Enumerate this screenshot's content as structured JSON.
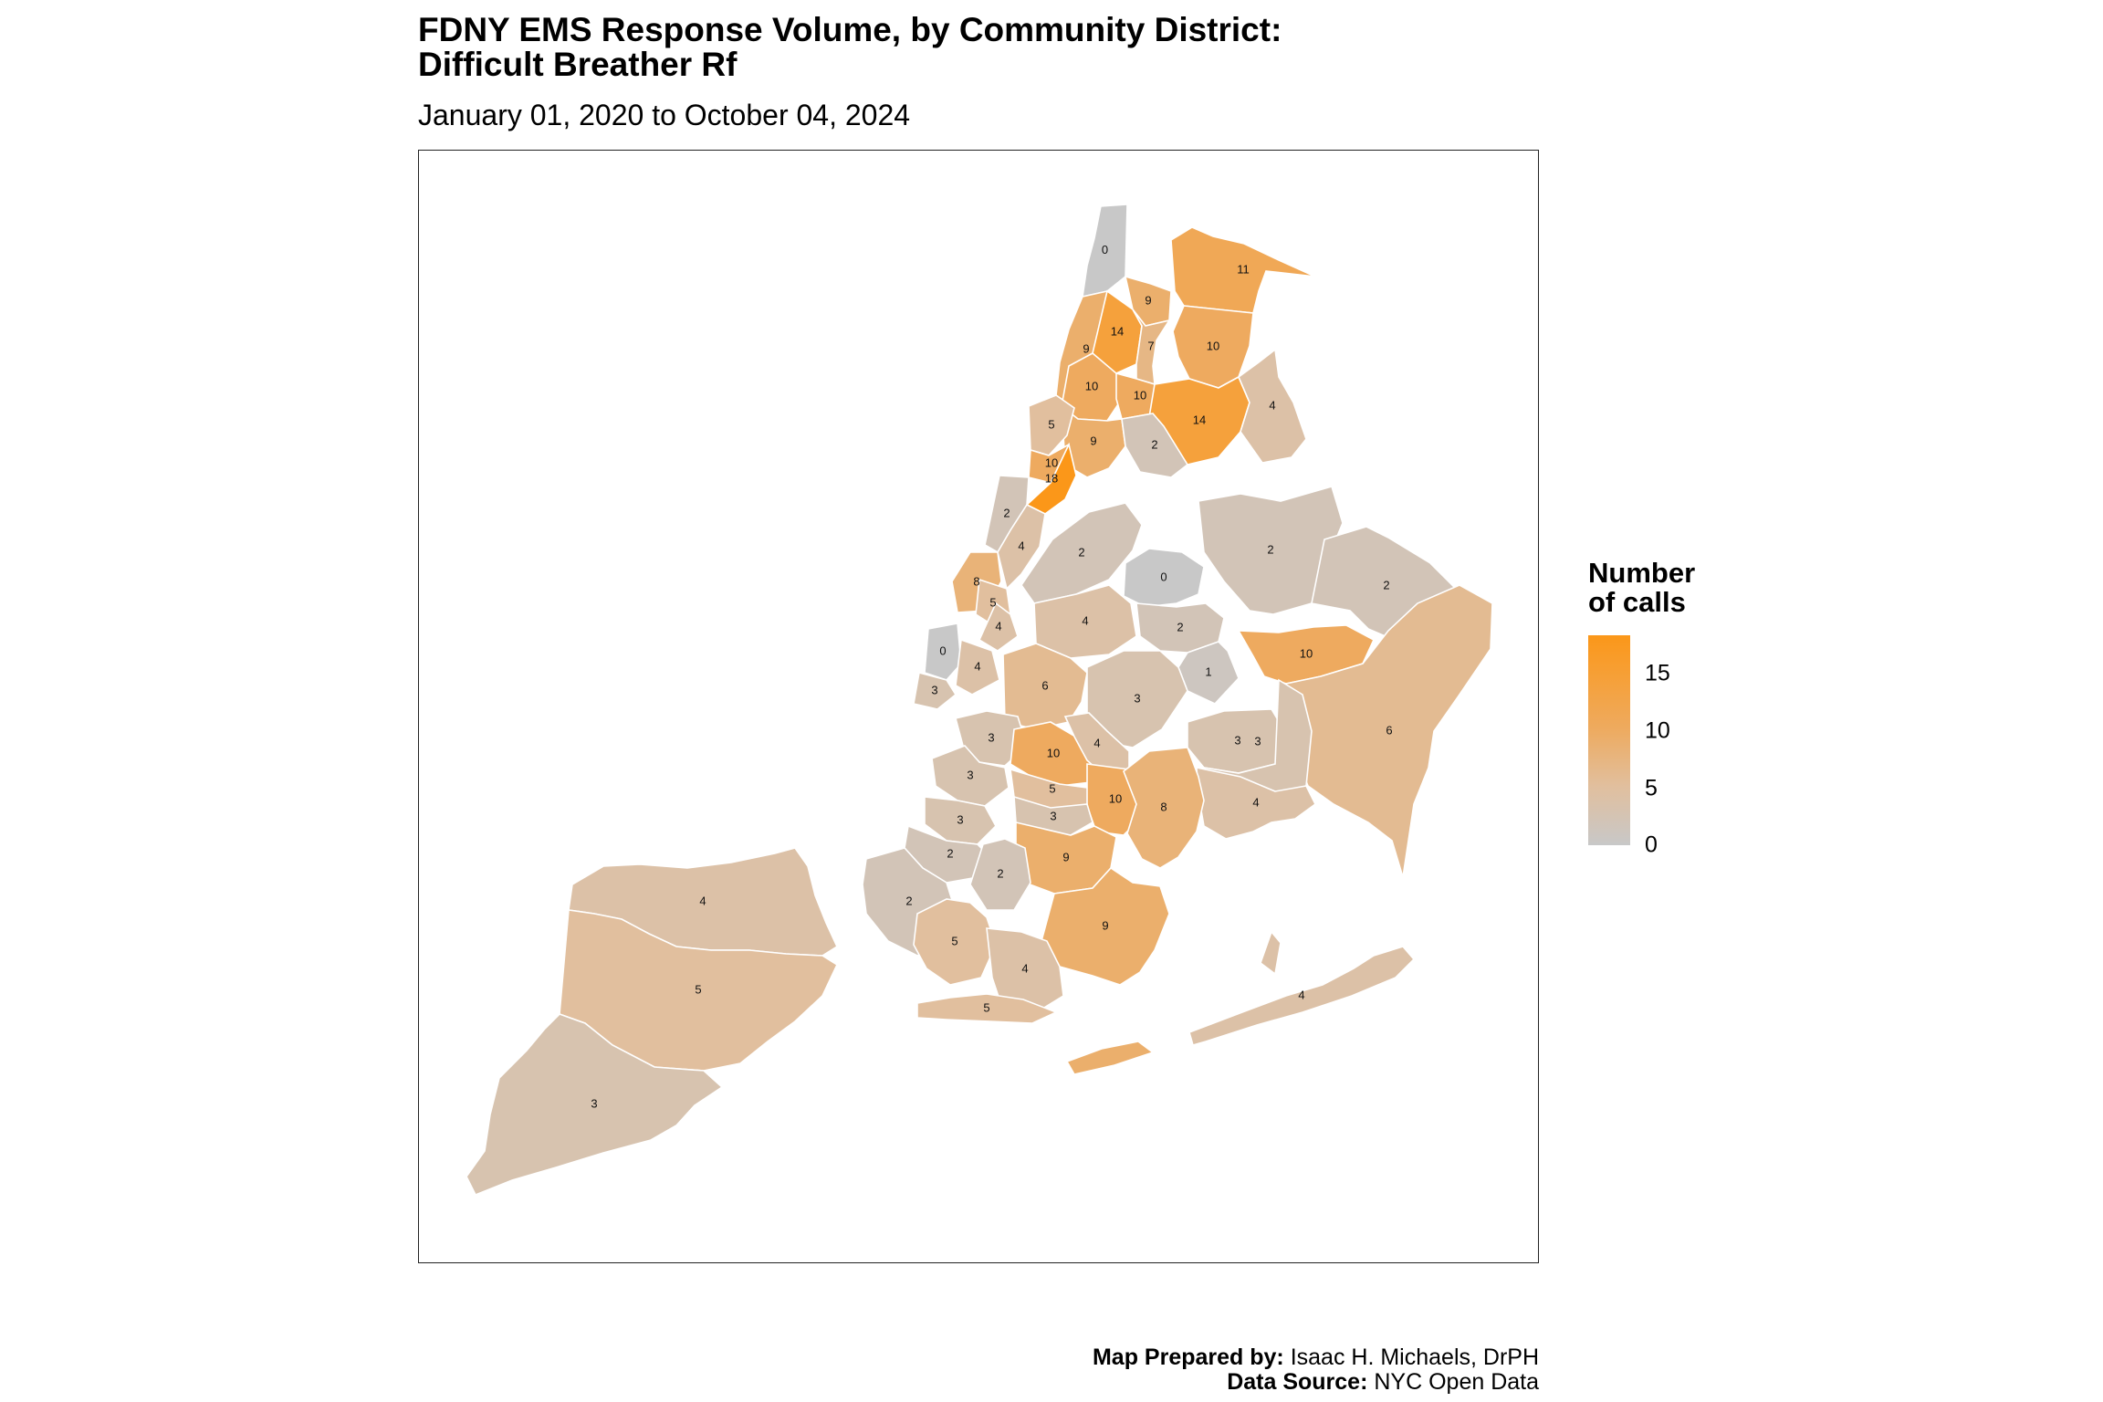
{
  "header": {
    "title_line1": "FDNY EMS Response Volume, by Community District:",
    "title_line2": "Difficult Breather Rf",
    "subtitle": "January 01, 2020 to October 04, 2024"
  },
  "legend": {
    "title_line1": "Number",
    "title_line2": "of calls",
    "ticks": [
      "15",
      "10",
      "5",
      "0"
    ],
    "color_low": "#c8c8c8",
    "color_high": "#fb9719",
    "value_max": 18
  },
  "credits": {
    "prepared_label": "Map Prepared by:",
    "prepared_value": "Isaac H. Michaels, DrPH",
    "source_label": "Data Source:",
    "source_value": "NYC Open Data"
  },
  "map": {
    "districts": [
      {
        "id": "bx-riverdale",
        "value": 0
      },
      {
        "id": "bx-7",
        "value": 9
      },
      {
        "id": "bx-12",
        "value": 11
      },
      {
        "id": "bx-8",
        "value": 9
      },
      {
        "id": "bx-5",
        "value": 14
      },
      {
        "id": "bx-6",
        "value": 7
      },
      {
        "id": "bx-11",
        "value": 10
      },
      {
        "id": "bx-4",
        "value": 10
      },
      {
        "id": "bx-3",
        "value": 10
      },
      {
        "id": "bx-9",
        "value": 14
      },
      {
        "id": "bx-10",
        "value": 4
      },
      {
        "id": "mn-12",
        "value": 5
      },
      {
        "id": "mn-10",
        "value": 10
      },
      {
        "id": "bx-1",
        "value": 9
      },
      {
        "id": "bx-2",
        "value": 2
      },
      {
        "id": "mn-11",
        "value": 18
      },
      {
        "id": "mn-9",
        "value": 2
      },
      {
        "id": "mn-8",
        "value": 4
      },
      {
        "id": "mn-7",
        "value": 8
      },
      {
        "id": "mn-6",
        "value": 5
      },
      {
        "id": "mn-4",
        "value": 4
      },
      {
        "id": "mn-2",
        "value": 0
      },
      {
        "id": "mn-3",
        "value": 4
      },
      {
        "id": "mn-1",
        "value": 3
      },
      {
        "id": "qn-1",
        "value": 2
      },
      {
        "id": "qn-airport",
        "value": 0
      },
      {
        "id": "qn-7",
        "value": 2
      },
      {
        "id": "qn-11",
        "value": 2
      },
      {
        "id": "qn-2",
        "value": 4
      },
      {
        "id": "qn-3",
        "value": 2
      },
      {
        "id": "qn-8",
        "value": 1
      },
      {
        "id": "qn-13",
        "value": 10
      },
      {
        "id": "qn-5",
        "value": 6
      },
      {
        "id": "qn-6",
        "value": 3
      },
      {
        "id": "qn-12",
        "value": 6
      },
      {
        "id": "qn-4",
        "value": 3
      },
      {
        "id": "qn-10",
        "value": 3
      },
      {
        "id": "qn-9",
        "value": 4
      },
      {
        "id": "bk-1",
        "value": 3
      },
      {
        "id": "bk-3",
        "value": 10
      },
      {
        "id": "bk-4",
        "value": 4
      },
      {
        "id": "bk-2",
        "value": 3
      },
      {
        "id": "bk-8",
        "value": 5
      },
      {
        "id": "bk-16",
        "value": 10
      },
      {
        "id": "bk-5",
        "value": 8
      },
      {
        "id": "bk-9",
        "value": 3
      },
      {
        "id": "bk-6",
        "value": 3
      },
      {
        "id": "bk-17",
        "value": 9
      },
      {
        "id": "bk-7",
        "value": 2
      },
      {
        "id": "bk-14",
        "value": 2
      },
      {
        "id": "bk-10",
        "value": 2
      },
      {
        "id": "bk-18",
        "value": 9
      },
      {
        "id": "bk-11",
        "value": 5
      },
      {
        "id": "bk-15",
        "value": 4
      },
      {
        "id": "bk-13",
        "value": 5
      },
      {
        "id": "qn-14",
        "value": 4
      },
      {
        "id": "si-1",
        "value": 4
      },
      {
        "id": "si-2",
        "value": 5
      },
      {
        "id": "si-3",
        "value": 3
      }
    ]
  }
}
